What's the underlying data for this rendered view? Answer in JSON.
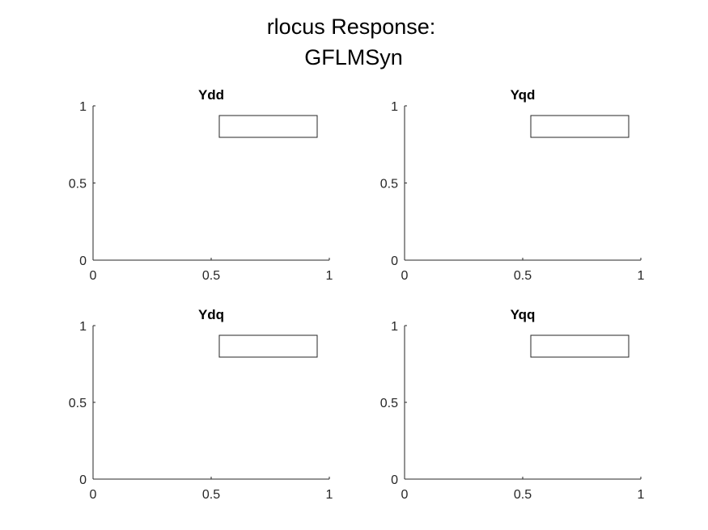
{
  "figure": {
    "title_line1": "rlocus Response:",
    "title_line2": "GFLMSyn"
  },
  "colors": {
    "background": "#ffffff",
    "axis": "#262626",
    "text": "#000000"
  },
  "chart_data": [
    {
      "type": "line",
      "title": "Ydd",
      "series": [],
      "xlim": [
        0,
        1
      ],
      "ylim": [
        0,
        1
      ],
      "xticks": [
        0,
        0.5,
        1
      ],
      "yticks": [
        0,
        0.5,
        1
      ],
      "xtick_labels": [
        "0",
        "0.5",
        "1"
      ],
      "ytick_labels": [
        "0",
        "0.5",
        "1"
      ],
      "grid": false,
      "legend": "top-right",
      "legend_entries": []
    },
    {
      "type": "line",
      "title": "Yqd",
      "series": [],
      "xlim": [
        0,
        1
      ],
      "ylim": [
        0,
        1
      ],
      "xticks": [
        0,
        0.5,
        1
      ],
      "yticks": [
        0,
        0.5,
        1
      ],
      "xtick_labels": [
        "0",
        "0.5",
        "1"
      ],
      "ytick_labels": [
        "0",
        "0.5",
        "1"
      ],
      "grid": false,
      "legend": "top-right",
      "legend_entries": []
    },
    {
      "type": "line",
      "title": "Ydq",
      "series": [],
      "xlim": [
        0,
        1
      ],
      "ylim": [
        0,
        1
      ],
      "xticks": [
        0,
        0.5,
        1
      ],
      "yticks": [
        0,
        0.5,
        1
      ],
      "xtick_labels": [
        "0",
        "0.5",
        "1"
      ],
      "ytick_labels": [
        "0",
        "0.5",
        "1"
      ],
      "grid": false,
      "legend": "top-right",
      "legend_entries": []
    },
    {
      "type": "line",
      "title": "Yqq",
      "series": [],
      "xlim": [
        0,
        1
      ],
      "ylim": [
        0,
        1
      ],
      "xticks": [
        0,
        0.5,
        1
      ],
      "yticks": [
        0,
        0.5,
        1
      ],
      "xtick_labels": [
        "0",
        "0.5",
        "1"
      ],
      "ytick_labels": [
        "0",
        "0.5",
        "1"
      ],
      "grid": false,
      "legend": "top-right",
      "legend_entries": []
    }
  ]
}
